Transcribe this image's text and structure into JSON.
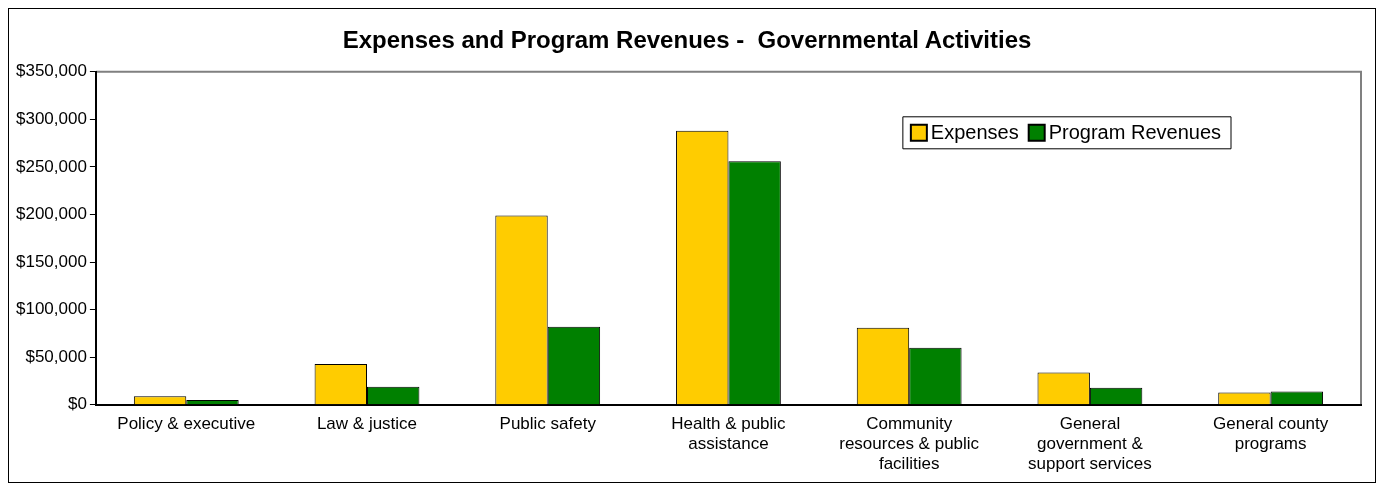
{
  "chart_data": {
    "type": "bar",
    "title": "Expenses and Program Revenues -  Governmental Activities",
    "categories": [
      "Policy & executive",
      "Law & justice",
      "Public safety",
      "Health & public assistance",
      "Community resources & public facilities",
      "General government & support services",
      "General county programs"
    ],
    "series": [
      {
        "name": "Expenses",
        "color": "#ffcc00",
        "values": [
          9000,
          43000,
          199000,
          288000,
          81000,
          34000,
          13000
        ]
      },
      {
        "name": "Program Revenues",
        "color": "#008000",
        "values": [
          5000,
          19000,
          82000,
          256000,
          60000,
          18000,
          14000
        ]
      }
    ],
    "ylim": [
      0,
      350000
    ],
    "yticks": [
      {
        "value": 0,
        "label": "$0"
      },
      {
        "value": 50000,
        "label": "$50,000"
      },
      {
        "value": 100000,
        "label": "$100,000"
      },
      {
        "value": 150000,
        "label": "$150,000"
      },
      {
        "value": 200000,
        "label": "$200,000"
      },
      {
        "value": 250000,
        "label": "$250,000"
      },
      {
        "value": 300000,
        "label": "$300,000"
      },
      {
        "value": 350000,
        "label": "$350,000"
      }
    ],
    "grid": false,
    "legend": "top right"
  }
}
